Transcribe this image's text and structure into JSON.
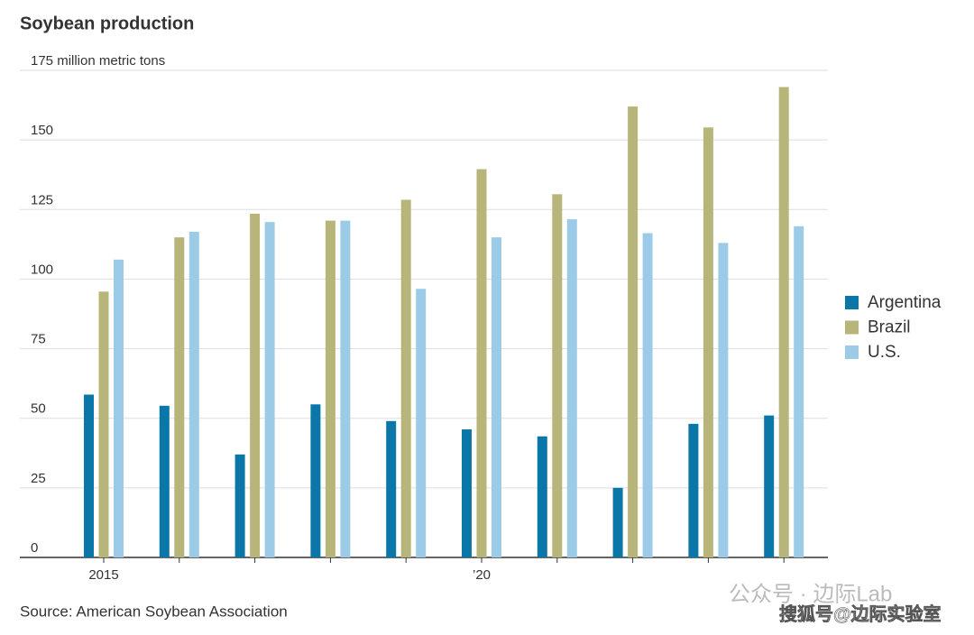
{
  "chart_data": {
    "type": "bar",
    "title": "Soybean production",
    "categories": [
      "2015",
      null,
      null,
      null,
      null,
      "’20",
      null,
      null,
      null,
      null
    ],
    "series": [
      {
        "name": "Argentina",
        "color": "#0a77a8",
        "values": [
          58.5,
          54.5,
          37,
          55,
          49,
          46,
          43.5,
          25,
          48,
          51
        ]
      },
      {
        "name": "Brazil",
        "color": "#b8b57a",
        "values": [
          95.5,
          115,
          123.5,
          121,
          128.5,
          139.5,
          130.5,
          162,
          154.5,
          169
        ]
      },
      {
        "name": "U.S.",
        "color": "#9ccbe8",
        "values": [
          107,
          117,
          120.5,
          121,
          96.5,
          115,
          121.5,
          116.5,
          113,
          119
        ]
      }
    ],
    "ylim": [
      0,
      175
    ],
    "yticks": [
      0,
      25,
      50,
      75,
      100,
      125,
      150,
      {
        "value": 175,
        "label": "175 million metric tons"
      }
    ],
    "grid": true,
    "legend": "right",
    "source": "Source: American Soybean Association"
  },
  "watermarks": [
    "公众号 · 边际Lab",
    "搜狐号@边际实验室"
  ]
}
